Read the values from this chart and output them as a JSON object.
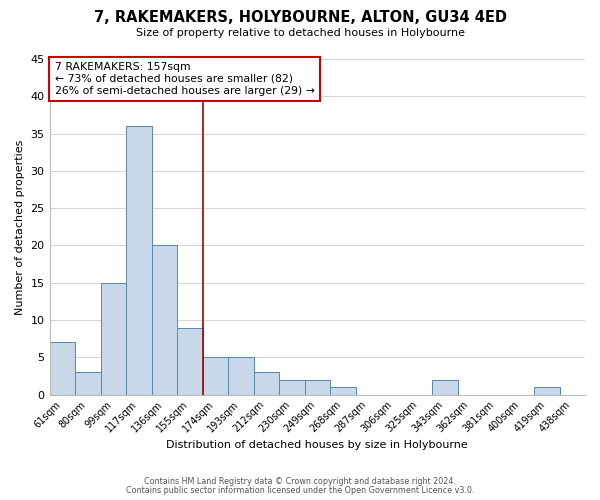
{
  "title": "7, RAKEMAKERS, HOLYBOURNE, ALTON, GU34 4ED",
  "subtitle": "Size of property relative to detached houses in Holybourne",
  "xlabel": "Distribution of detached houses by size in Holybourne",
  "ylabel": "Number of detached properties",
  "bar_color": "#c8d8e8",
  "bar_edge_color": "#5588aa",
  "categories": [
    "61sqm",
    "80sqm",
    "99sqm",
    "117sqm",
    "136sqm",
    "155sqm",
    "174sqm",
    "193sqm",
    "212sqm",
    "230sqm",
    "249sqm",
    "268sqm",
    "287sqm",
    "306sqm",
    "325sqm",
    "343sqm",
    "362sqm",
    "381sqm",
    "400sqm",
    "419sqm",
    "438sqm"
  ],
  "values": [
    7,
    3,
    15,
    36,
    20,
    9,
    5,
    5,
    3,
    2,
    2,
    1,
    0,
    0,
    0,
    2,
    0,
    0,
    0,
    1,
    0
  ],
  "ylim": [
    0,
    45
  ],
  "yticks": [
    0,
    5,
    10,
    15,
    20,
    25,
    30,
    35,
    40,
    45
  ],
  "vline_x": 5.5,
  "vline_color": "#aa0000",
  "annotation_title": "7 RAKEMAKERS: 157sqm",
  "annotation_line1": "← 73% of detached houses are smaller (82)",
  "annotation_line2": "26% of semi-detached houses are larger (29) →",
  "footer1": "Contains HM Land Registry data © Crown copyright and database right 2024.",
  "footer2": "Contains public sector information licensed under the Open Government Licence v3.0.",
  "background_color": "#ffffff",
  "grid_color": "#cccccc"
}
